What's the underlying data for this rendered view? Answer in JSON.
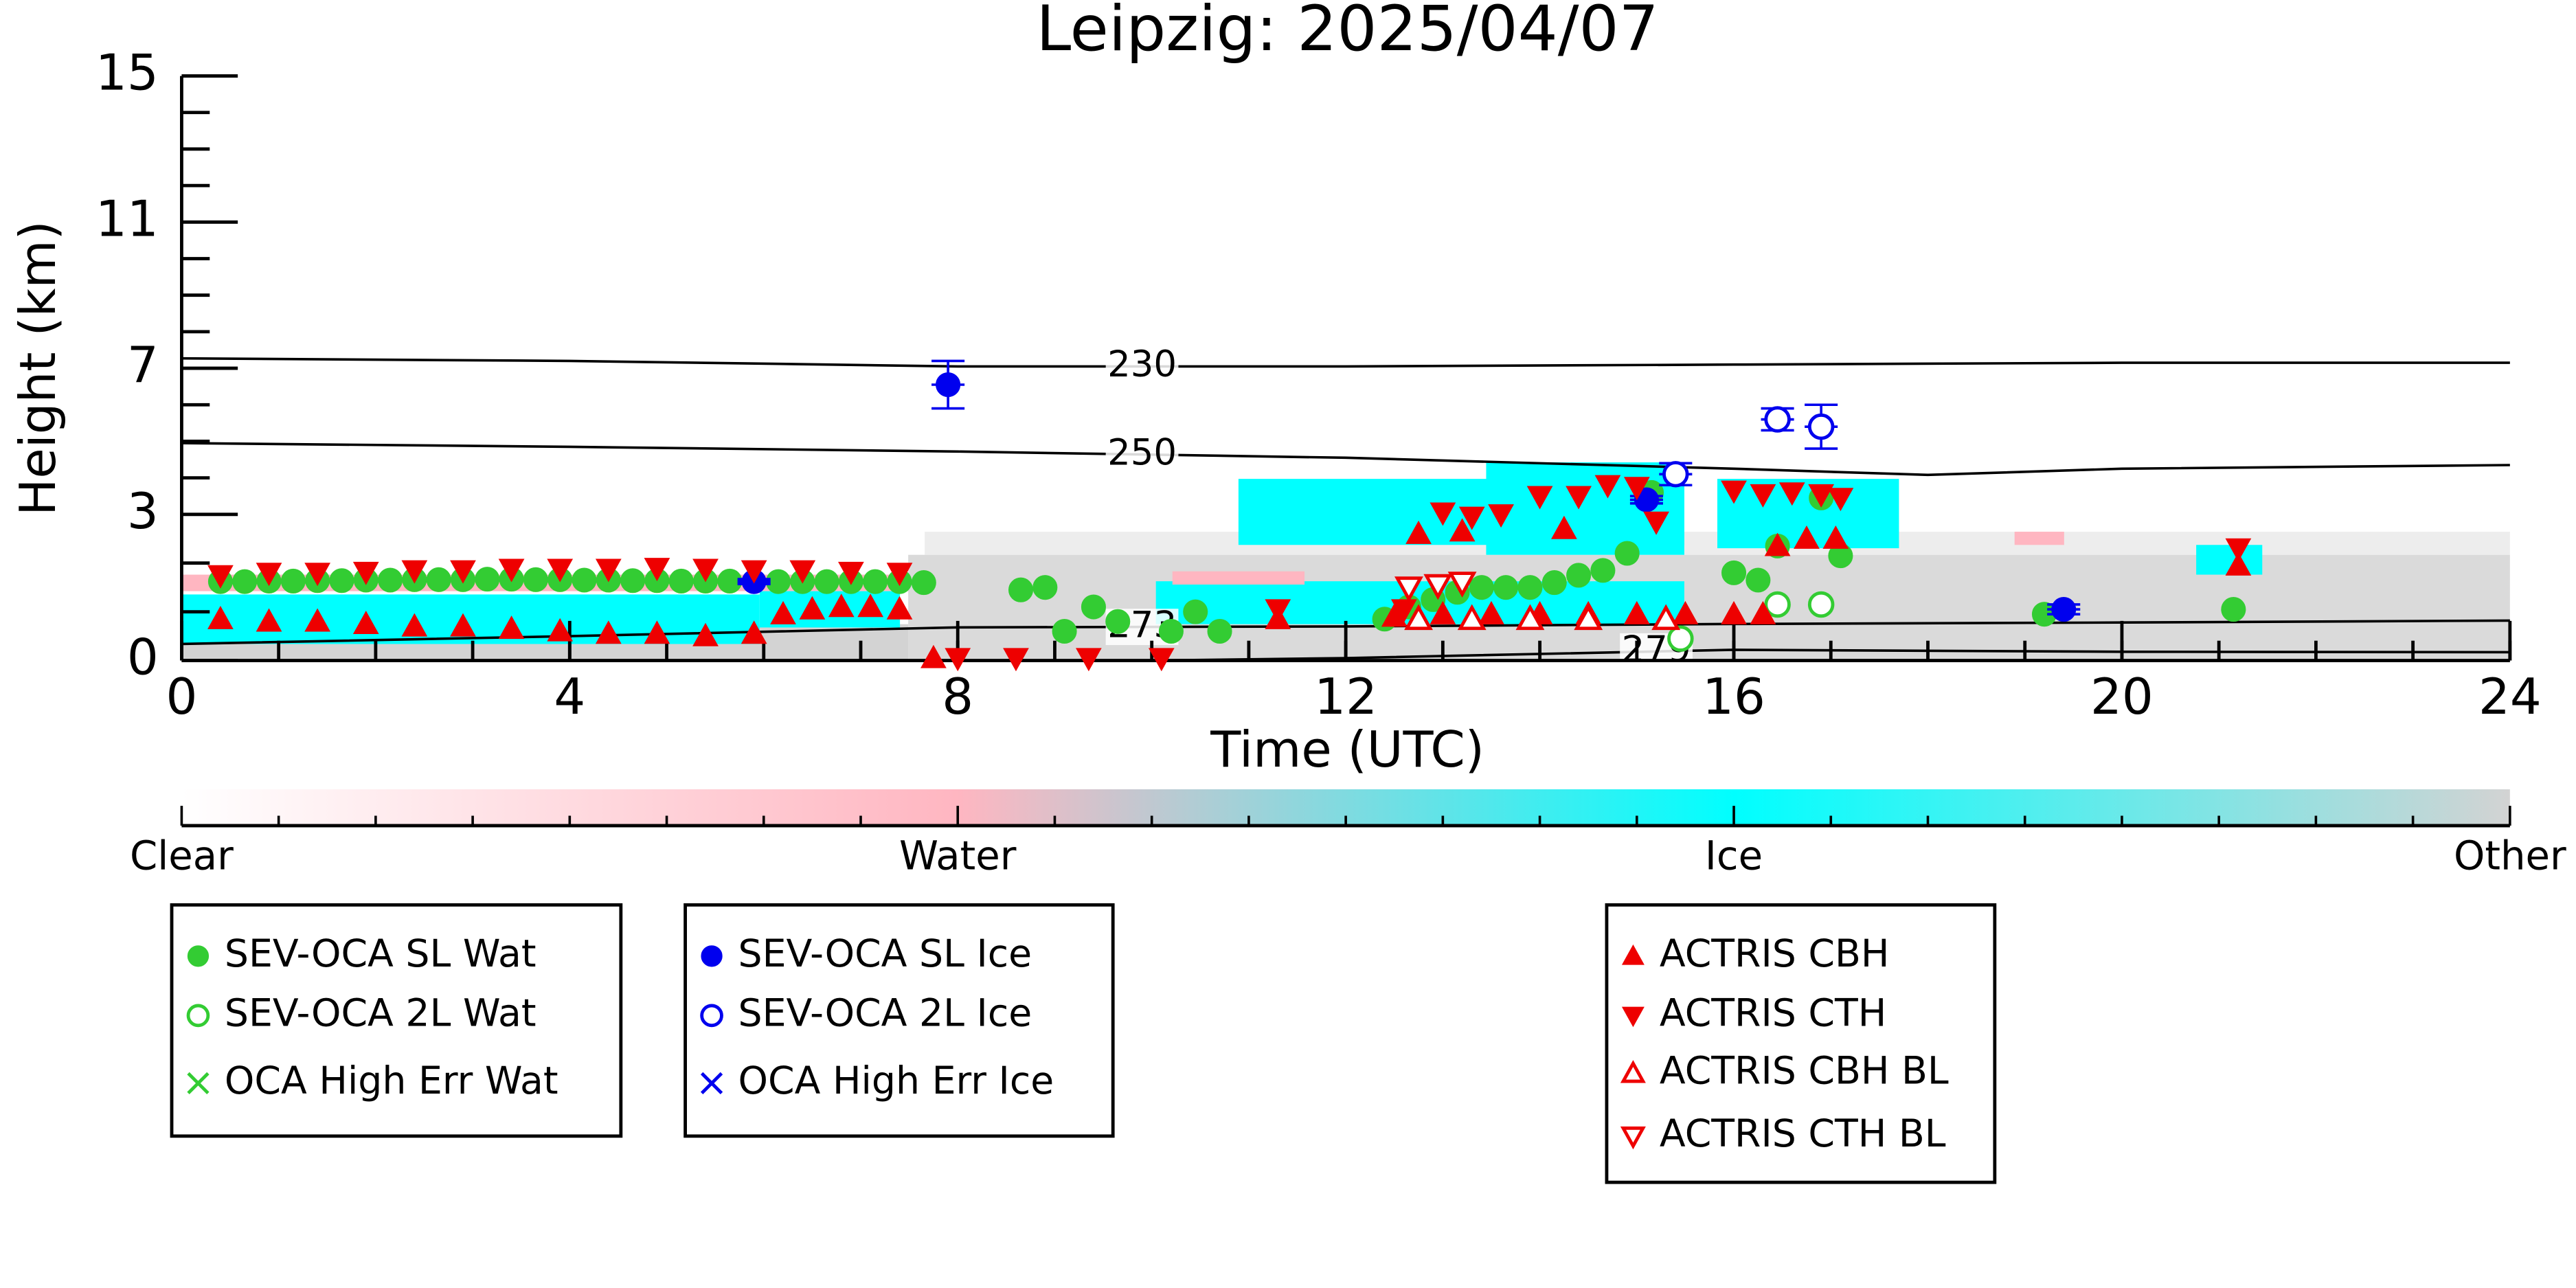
{
  "chart_data": {
    "type": "scatter",
    "title": "Leipzig: 2025/04/07",
    "x_label": "Time (UTC)",
    "y_label": "Height (km)",
    "xlim": [
      0,
      24
    ],
    "xticks": [
      0,
      4,
      8,
      12,
      16,
      20,
      24
    ],
    "ylim": [
      0,
      15
    ],
    "yticks": [
      0,
      3,
      7,
      11,
      15
    ],
    "contours": [
      {
        "level": 230,
        "x": [
          0,
          4,
          8,
          12,
          16,
          20,
          24
        ],
        "y": [
          7.27,
          7.2,
          7.05,
          7.05,
          7.1,
          7.15,
          7.15
        ]
      },
      {
        "level": 250,
        "x": [
          0,
          4,
          8,
          12,
          16,
          18,
          20,
          24
        ],
        "y": [
          4.95,
          4.85,
          4.72,
          4.55,
          4.25,
          4.08,
          4.25,
          4.35
        ]
      },
      {
        "level": 273,
        "x": [
          0,
          4,
          8,
          12,
          16,
          20,
          24
        ],
        "y": [
          0.34,
          0.5,
          0.68,
          0.7,
          0.75,
          0.78,
          0.82
        ]
      },
      {
        "level": 279,
        "x": [
          10,
          12,
          16,
          20,
          24
        ],
        "y": [
          0.0,
          0.05,
          0.22,
          0.18,
          0.17
        ]
      }
    ],
    "series": [
      {
        "name": "SEV-OCA SL Wat",
        "color": "#33cc33",
        "marker": "circle",
        "filled": true,
        "x": [
          0.4,
          0.65,
          0.9,
          1.15,
          1.4,
          1.65,
          1.9,
          2.15,
          2.4,
          2.65,
          2.9,
          3.15,
          3.4,
          3.65,
          3.9,
          4.15,
          4.4,
          4.65,
          4.9,
          5.15,
          5.4,
          5.65,
          6.15,
          6.4,
          6.65,
          6.9,
          7.15,
          7.4,
          7.65,
          8.65,
          8.9,
          9.1,
          9.4,
          9.65,
          10.2,
          10.45,
          10.7,
          12.4,
          12.65,
          12.9,
          13.15,
          13.4,
          13.65,
          13.9,
          14.15,
          14.4,
          14.65,
          14.9,
          15.15,
          16.0,
          16.25,
          16.45,
          16.9,
          17.1,
          19.2,
          21.15
        ],
        "y": [
          1.62,
          1.62,
          1.63,
          1.63,
          1.64,
          1.64,
          1.65,
          1.65,
          1.66,
          1.66,
          1.66,
          1.67,
          1.67,
          1.66,
          1.66,
          1.65,
          1.65,
          1.64,
          1.64,
          1.63,
          1.63,
          1.63,
          1.62,
          1.62,
          1.62,
          1.62,
          1.62,
          1.62,
          1.6,
          1.45,
          1.5,
          0.6,
          1.1,
          0.8,
          0.6,
          1.0,
          0.6,
          0.85,
          1.1,
          1.25,
          1.4,
          1.5,
          1.5,
          1.5,
          1.6,
          1.75,
          1.85,
          2.2,
          3.6,
          1.8,
          1.65,
          2.35,
          3.45,
          2.15,
          0.95,
          1.05
        ]
      },
      {
        "name": "SEV-OCA 2L Wat",
        "color": "#33cc33",
        "marker": "circle",
        "filled": false,
        "x": [
          15.45,
          16.45,
          16.9
        ],
        "y": [
          0.45,
          1.15,
          1.15
        ]
      },
      {
        "name": "OCA High Err Wat",
        "color": "#33cc33",
        "marker": "x",
        "filled": false,
        "x": [],
        "y": []
      },
      {
        "name": "SEV-OCA SL Ice",
        "color": "#0000ee",
        "marker": "circle",
        "filled": true,
        "x": [
          5.9,
          7.9,
          15.1,
          19.4
        ],
        "y": [
          1.62,
          6.55,
          3.4,
          1.05
        ],
        "errors": [
          0.05,
          0.65,
          0.1,
          0.1
        ]
      },
      {
        "name": "SEV-OCA 2L Ice",
        "color": "#0000ee",
        "marker": "circle",
        "filled": false,
        "x": [
          15.4,
          16.45,
          16.9
        ],
        "y": [
          4.1,
          5.6,
          5.4
        ],
        "errors": [
          0.3,
          0.3,
          0.6
        ]
      },
      {
        "name": "OCA High Err Ice",
        "color": "#0000ee",
        "marker": "x",
        "filled": false,
        "x": [],
        "y": []
      },
      {
        "name": "ACTRIS CBH",
        "color": "#ee0000",
        "marker": "triangle-up",
        "filled": true,
        "x": [
          0.4,
          0.9,
          1.4,
          1.9,
          2.4,
          2.9,
          3.4,
          3.9,
          4.4,
          4.9,
          5.4,
          5.9,
          6.2,
          6.5,
          6.8,
          7.1,
          7.4,
          7.75,
          11.3,
          12.5,
          13.0,
          13.5,
          14.0,
          14.5,
          15.0,
          15.5,
          16.0,
          16.3,
          12.75,
          13.2,
          14.25,
          16.45,
          16.75,
          17.05,
          21.2
        ],
        "y": [
          0.85,
          0.8,
          0.8,
          0.75,
          0.7,
          0.7,
          0.65,
          0.6,
          0.55,
          0.55,
          0.5,
          0.55,
          0.95,
          1.05,
          1.1,
          1.1,
          1.05,
          0.05,
          0.85,
          0.9,
          0.95,
          0.95,
          0.95,
          0.95,
          0.95,
          0.95,
          0.95,
          0.95,
          2.6,
          2.65,
          2.7,
          2.35,
          2.5,
          2.5,
          1.95
        ]
      },
      {
        "name": "ACTRIS CTH",
        "color": "#ee0000",
        "marker": "triangle-down",
        "filled": true,
        "x": [
          0.4,
          0.9,
          1.4,
          1.9,
          2.4,
          2.9,
          3.4,
          3.9,
          4.4,
          4.9,
          5.4,
          5.9,
          6.4,
          6.9,
          7.4,
          8.0,
          8.6,
          9.35,
          10.1,
          11.3,
          12.6,
          13.0,
          13.3,
          13.6,
          14.0,
          14.4,
          14.7,
          15.0,
          15.2,
          16.0,
          16.3,
          16.6,
          16.9,
          17.1,
          21.2
        ],
        "y": [
          1.75,
          1.8,
          1.8,
          1.82,
          1.85,
          1.85,
          1.88,
          1.88,
          1.88,
          1.9,
          1.88,
          1.85,
          1.85,
          1.82,
          1.8,
          0.05,
          0.05,
          0.05,
          0.05,
          1.05,
          1.05,
          3.05,
          2.95,
          3.0,
          3.5,
          3.5,
          3.8,
          3.75,
          2.85,
          3.65,
          3.55,
          3.6,
          3.55,
          3.45,
          2.3
        ]
      },
      {
        "name": "ACTRIS CBH BL",
        "color": "#ee0000",
        "marker": "triangle-up",
        "filled": false,
        "x": [
          12.75,
          13.3,
          13.9,
          14.5,
          15.3
        ],
        "y": [
          0.85,
          0.85,
          0.85,
          0.85,
          0.85
        ]
      },
      {
        "name": "ACTRIS CTH BL",
        "color": "#ee0000",
        "marker": "triangle-down",
        "filled": false,
        "x": [
          12.65,
          12.95,
          13.2
        ],
        "y": [
          1.5,
          1.55,
          1.6
        ]
      }
    ],
    "colorbar": {
      "labels": [
        "Clear",
        "Water",
        "Ice",
        "Other"
      ]
    }
  }
}
